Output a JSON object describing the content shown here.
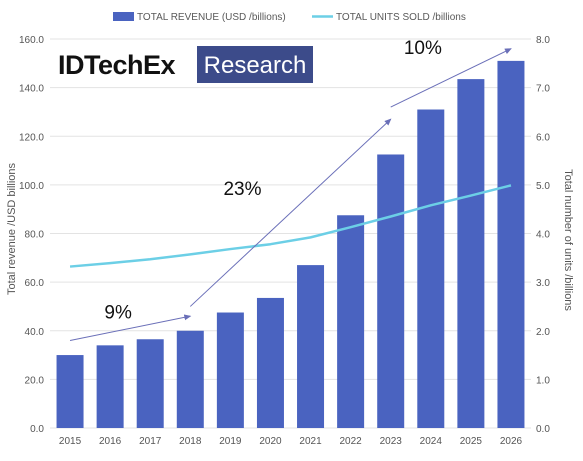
{
  "logo": {
    "brand": "IDTechEx",
    "sub": "Research",
    "brand_color": "#111111",
    "box_color": "#3c4b8a"
  },
  "colors": {
    "bar": "#4a63c0",
    "line": "#6ccfe6",
    "arrow": "#6a6fb8",
    "grid": "#e3e3e3"
  },
  "chart_data": {
    "type": "bar",
    "categories": [
      "2015",
      "2016",
      "2017",
      "2018",
      "2019",
      "2020",
      "2021",
      "2022",
      "2023",
      "2024",
      "2025",
      "2026"
    ],
    "series": [
      {
        "name": "TOTAL REVENUE (USD /billions)",
        "type": "bar",
        "axis": "left",
        "values": [
          30,
          34,
          36.5,
          40,
          47.5,
          53.5,
          67,
          87.5,
          112.5,
          131,
          143.5,
          151
        ]
      },
      {
        "name": "TOTAL UNITS SOLD /billions",
        "type": "line",
        "axis": "right",
        "values": [
          3.32,
          3.39,
          3.47,
          3.57,
          3.68,
          3.78,
          3.92,
          4.13,
          4.35,
          4.58,
          4.78,
          4.99
        ]
      }
    ],
    "ylabel": "Total revenue /USD billions",
    "y2label": "Total number of units /billions",
    "ylim": [
      0,
      160
    ],
    "y2lim": [
      0,
      8
    ],
    "yticks": [
      "0.0",
      "20.0",
      "40.0",
      "60.0",
      "80.0",
      "100.0",
      "120.0",
      "140.0",
      "160.0"
    ],
    "y2ticks": [
      "0.0",
      "1.0",
      "2.0",
      "3.0",
      "4.0",
      "5.0",
      "6.0",
      "7.0",
      "8.0"
    ],
    "grid": true,
    "legend_position": "top",
    "annotations": [
      {
        "label": "9%",
        "from": [
          "2015",
          36
        ],
        "to": [
          "2018",
          46
        ]
      },
      {
        "label": "23%",
        "from": [
          "2018",
          50
        ],
        "to": [
          "2023",
          127
        ]
      },
      {
        "label": "10%",
        "from": [
          "2023",
          132
        ],
        "to": [
          "2026",
          156
        ]
      }
    ]
  }
}
